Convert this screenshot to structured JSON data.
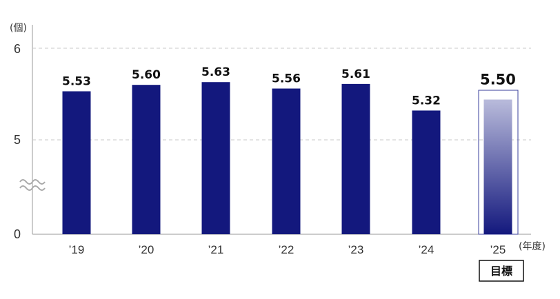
{
  "chart_data": {
    "type": "bar",
    "categories": [
      "’19",
      "’20",
      "’21",
      "’22",
      "’23",
      "’24",
      "’25"
    ],
    "values": [
      5.53,
      5.6,
      5.63,
      5.56,
      5.61,
      5.32,
      5.5
    ],
    "value_labels": [
      "5.53",
      "5.60",
      "5.63",
      "5.56",
      "5.61",
      "5.32",
      "5.50"
    ],
    "ylabel": "(個)",
    "xlabel": "(年度)",
    "y_ticks": [
      "0",
      "5",
      "6"
    ],
    "ylim": [
      0,
      6
    ],
    "axis_break": "between 0 and 5",
    "grid": "dashed horizontal at 5 and 6",
    "target_index": 6,
    "target_badge": "目標",
    "colors": {
      "bar": "#13187d",
      "target_gradient_top": "#b9bbdb",
      "target_gradient_bottom": "#13187d",
      "target_frame": "#3a3f9b",
      "grid": "#c8c8c8",
      "axis": "#9a9a9a",
      "break_mark": "#aaaaaa"
    }
  }
}
